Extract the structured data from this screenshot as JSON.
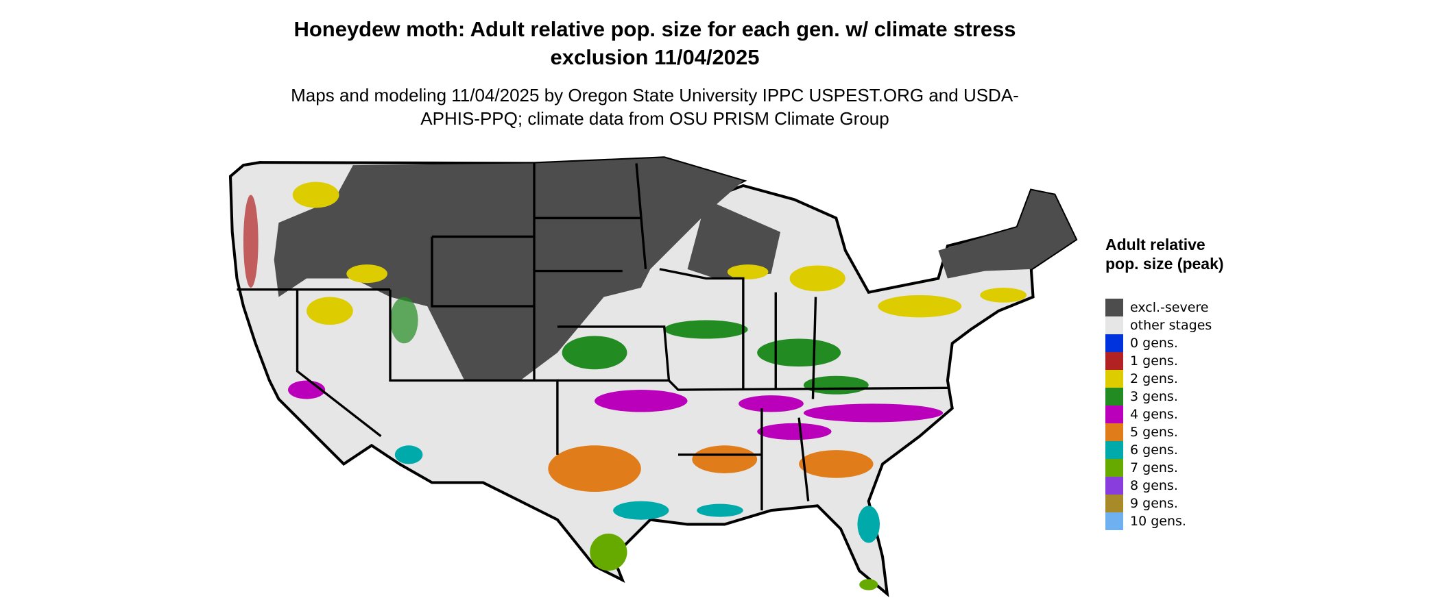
{
  "title": "Honeydew moth: Adult relative pop. size for each gen. w/ climate stress exclusion 11/04/2025",
  "subtitle": "Maps and modeling 11/04/2025 by Oregon State University IPPC USPEST.ORG and USDA-APHIS-PPQ; climate data from OSU PRISM Climate Group",
  "legend": {
    "title": "Adult relative pop. size (peak)",
    "items": [
      {
        "label": "excl.-severe",
        "color": "#4d4d4d"
      },
      {
        "label": "other stages",
        "color": "#e6e6e6"
      },
      {
        "label": "0 gens.",
        "color": "#0033dd"
      },
      {
        "label": "1 gens.",
        "color": "#b22222"
      },
      {
        "label": "2 gens.",
        "color": "#ddcc00"
      },
      {
        "label": "3 gens.",
        "color": "#228b22"
      },
      {
        "label": "4 gens.",
        "color": "#bb00bb"
      },
      {
        "label": "5 gens.",
        "color": "#e07d1a"
      },
      {
        "label": "6 gens.",
        "color": "#00aaaa"
      },
      {
        "label": "7 gens.",
        "color": "#66aa00"
      },
      {
        "label": "8 gens.",
        "color": "#8a3ddd"
      },
      {
        "label": "9 gens.",
        "color": "#a88a28"
      },
      {
        "label": "10 gens.",
        "color": "#6fb0f0"
      }
    ]
  }
}
